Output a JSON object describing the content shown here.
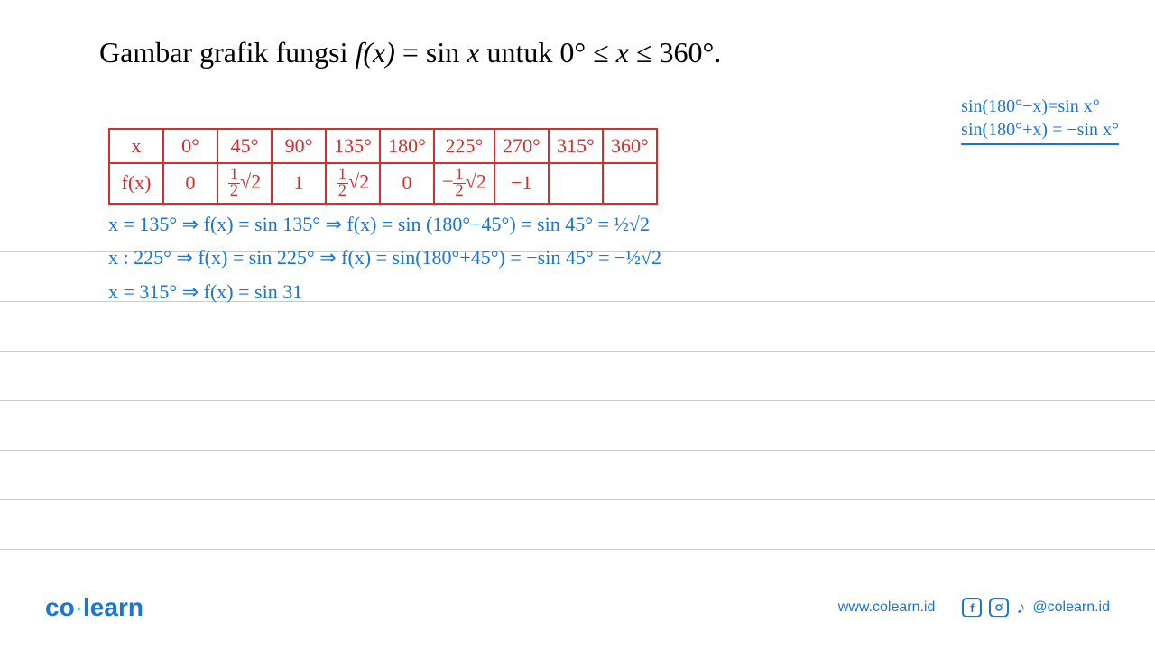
{
  "title_parts": {
    "prefix": "Gambar grafik fungsi ",
    "fx": "f(x)",
    "eq": " = sin ",
    "x": "x",
    "mid": " untuk 0° ≤ ",
    "x2": "x",
    "suffix": " ≤ 360°."
  },
  "annotation": {
    "line1": "sin(180°−x)=sin x°",
    "line2": "sin(180°+x) = −sin x°"
  },
  "table": {
    "header_label": "x",
    "fx_label": "f(x)",
    "columns": [
      "0°",
      "45°",
      "90°",
      "135°",
      "180°",
      "225°",
      "270°",
      "315°",
      "360°"
    ],
    "values_html": [
      "0",
      "<span class='frac'><span class='num'>1</span><span class='den'>2</span></span>√2",
      "1",
      "<span class='frac'><span class='num'>1</span><span class='den'>2</span></span>√2",
      "0",
      "−<span class='frac'><span class='num'>1</span><span class='den'>2</span></span>√2",
      "−1",
      "",
      ""
    ],
    "border_color": "#d32f2f",
    "text_color": "#d32f2f"
  },
  "work": [
    "x = 135° ⇒ f(x) = sin 135° ⇒ f(x) = sin (180°−45°) = sin 45° = ½√2",
    "x : 225° ⇒ f(x) = sin 225° ⇒ f(x) = sin(180°+45°) = −sin 45° = −½√2",
    "x = 315° ⇒ f(x) = sin 31"
  ],
  "colors": {
    "blue_ink": "#1976d2",
    "red_ink": "#d32f2f",
    "rule_line": "#cccccc",
    "background": "#ffffff"
  },
  "footer": {
    "logo_co": "co",
    "logo_dot": "·",
    "logo_learn": "learn",
    "url": "www.colearn.id",
    "handle": "@colearn.id"
  },
  "ruled_line_count": 7
}
